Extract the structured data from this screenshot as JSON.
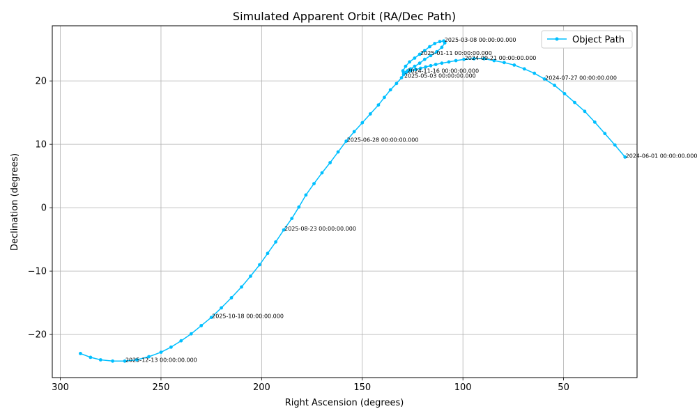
{
  "chart_data": {
    "type": "line",
    "title": "Simulated Apparent Orbit (RA/Dec Path)",
    "xlabel": "Right Ascension (degrees)",
    "ylabel": "Declination (degrees)",
    "xlim": [
      304,
      13.5
    ],
    "ylim": [
      -26.8,
      28.7
    ],
    "x_inverted": true,
    "xticks": [
      300,
      250,
      200,
      150,
      100,
      50
    ],
    "yticks": [
      -20,
      -10,
      0,
      10,
      20
    ],
    "grid": true,
    "legend_position": "top-right",
    "colors": {
      "series": "#00bfff"
    },
    "series": [
      {
        "name": "Object Path",
        "x": [
          19.5,
          24.5,
          29.5,
          34.5,
          39.5,
          44.5,
          49.5,
          54.5,
          59.5,
          64.5,
          72,
          80,
          86,
          92,
          98,
          104,
          110,
          114,
          118,
          122,
          126,
          128.5,
          128.8,
          128,
          126,
          124,
          122,
          120,
          118,
          116,
          114,
          112,
          110.5,
          109.5,
          109.7,
          110.5,
          112,
          114,
          116,
          118,
          120,
          122,
          124,
          126,
          128,
          129.8,
          128,
          126,
          122,
          119,
          115,
          111,
          107,
          103.5,
          100,
          96,
          92,
          88
        ],
        "y": [
          8.0,
          9.9,
          11.7,
          13.5,
          15.2,
          16.6,
          18.0,
          19.3,
          20.3,
          21.3,
          21.9,
          22.6,
          23.0,
          23.4,
          23.6,
          23.5,
          23.3,
          23.1,
          22.8,
          22.5,
          22.2,
          21.9,
          21.5,
          21.8,
          21.9,
          22.2,
          22.6,
          23.2,
          23.7,
          24.2,
          24.7,
          25.2,
          25.6,
          26.0,
          26.2,
          26.3,
          26.2,
          25.8,
          25.3,
          24.8,
          24.3,
          23.9,
          23.3,
          22.7,
          22.0,
          21.4,
          21.0,
          21.5,
          23.0,
          23.5,
          23.7,
          23.6,
          23.5,
          23.4,
          23.3,
          23.2,
          23.1,
          23.0
        ]
      }
    ],
    "path_points": {
      "ra": [
        19.5,
        24.5,
        29.5,
        34.5,
        39.5,
        44.5,
        49.5,
        54.5,
        59.5,
        64.5,
        69.5,
        74.5,
        79.5,
        84.5,
        89.5,
        94.5,
        99.5,
        103.5,
        107.0,
        110.5,
        113.5,
        116.0,
        118.5,
        121.0,
        123.5,
        126.0,
        128.0,
        129.5,
        129.8,
        128.5,
        126.5,
        124.0,
        121.5,
        119.0,
        116.5,
        114.0,
        111.5,
        109.5,
        109.0,
        110.5,
        113.0,
        116.0,
        119.0,
        121.5,
        124.0,
        126.0,
        127.5,
        128.5,
        129.5,
        130.5,
        133.0,
        136.0,
        139.0,
        142.0,
        146.0,
        150.0,
        154.0,
        158.0,
        162.0,
        166.0,
        170.0,
        174.0,
        178.0,
        181.5,
        185.0,
        189.0,
        193.0,
        197.0,
        201.0,
        205.5,
        210.0,
        215.0,
        220.0,
        225.0,
        230.0,
        235.0,
        240.0,
        245.0,
        250.0,
        256.0,
        262.0,
        268.0,
        274.0,
        280.0,
        285.0,
        290.0
      ],
      "dec": [
        8.0,
        9.9,
        11.7,
        13.5,
        15.2,
        16.6,
        18.0,
        19.3,
        20.3,
        21.2,
        21.9,
        22.5,
        22.9,
        23.2,
        23.5,
        23.5,
        23.4,
        23.2,
        23.0,
        22.8,
        22.6,
        22.4,
        22.2,
        22.0,
        21.8,
        21.6,
        21.4,
        21.3,
        21.6,
        22.3,
        23.0,
        23.6,
        24.2,
        24.8,
        25.4,
        25.9,
        26.2,
        26.3,
        26.0,
        25.3,
        24.6,
        24.0,
        23.4,
        22.8,
        22.3,
        21.9,
        21.6,
        21.3,
        21.0,
        20.5,
        19.6,
        18.6,
        17.4,
        16.2,
        14.8,
        13.4,
        12.0,
        10.5,
        8.8,
        7.1,
        5.5,
        3.8,
        2.0,
        0.1,
        -1.7,
        -3.5,
        -5.4,
        -7.2,
        -9.0,
        -10.8,
        -12.5,
        -14.2,
        -15.8,
        -17.3,
        -18.6,
        -19.9,
        -21.0,
        -22.0,
        -22.8,
        -23.5,
        -24.0,
        -24.2,
        -24.2,
        -24.0,
        -23.6,
        -23.0
      ]
    },
    "annotations": [
      {
        "text": "2024-06-01 00:00:00.000",
        "x": 19.5,
        "y": 8.0
      },
      {
        "text": "2024-07-27 00:00:00.000",
        "x": 59.5,
        "y": 20.3
      },
      {
        "text": "2024-09-21 00:00:00.000",
        "x": 99.5,
        "y": 23.4
      },
      {
        "text": "2024-11-16 00:00:00.000",
        "x": 128.0,
        "y": 21.4
      },
      {
        "text": "2025-01-11 00:00:00.000",
        "x": 121.5,
        "y": 24.2
      },
      {
        "text": "2025-03-08 00:00:00.000",
        "x": 109.5,
        "y": 26.3
      },
      {
        "text": "2025-05-03 00:00:00.000",
        "x": 129.5,
        "y": 20.6
      },
      {
        "text": "2025-06-28 00:00:00.000",
        "x": 158.0,
        "y": 10.5
      },
      {
        "text": "2025-08-23 00:00:00.000",
        "x": 189.0,
        "y": -3.5
      },
      {
        "text": "2025-10-18 00:00:00.000",
        "x": 225.0,
        "y": -17.3
      },
      {
        "text": "2025-12-13 00:00:00.000",
        "x": 268.0,
        "y": -24.2
      }
    ]
  }
}
